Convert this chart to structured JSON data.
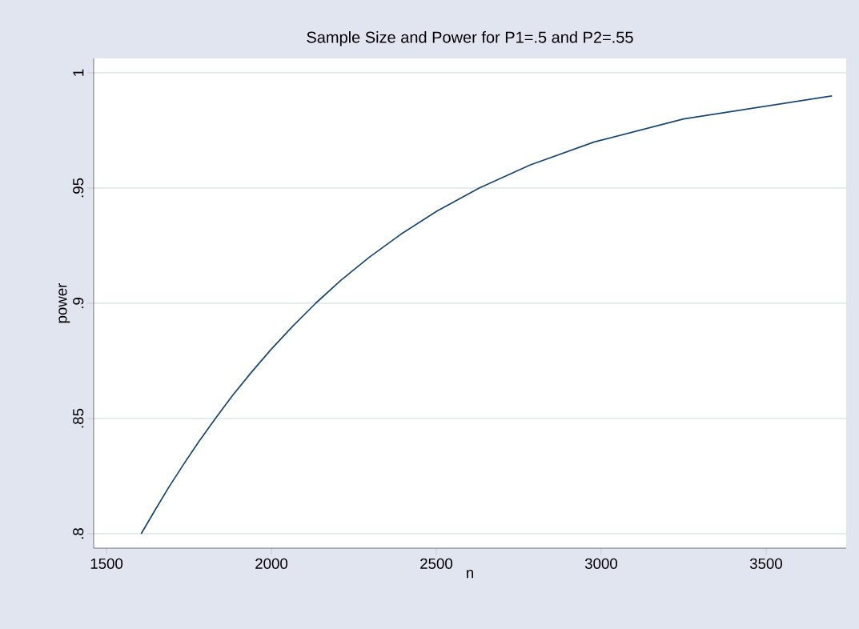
{
  "chart_data": {
    "type": "line",
    "title": "Sample Size and Power for P1=.5 and P2=.55",
    "xlabel": "n",
    "ylabel": "power",
    "series": [
      {
        "color": "#1a476f",
        "x": [
          1605,
          1646,
          1688,
          1733,
          1780,
          1830,
          1882,
          1939,
          1999,
          2064,
          2134,
          2211,
          2297,
          2393,
          2502,
          2630,
          2784,
          2979,
          3250,
          3700
        ],
        "values": [
          0.8,
          0.81,
          0.82,
          0.83,
          0.84,
          0.85,
          0.86,
          0.87,
          0.88,
          0.89,
          0.9,
          0.91,
          0.92,
          0.93,
          0.94,
          0.95,
          0.96,
          0.97,
          0.98,
          0.99
        ]
      }
    ],
    "xlim": [
      1461,
      3743
    ],
    "ylim": [
      0.79375,
      1.00625
    ],
    "xticks": [
      1500,
      2000,
      2500,
      3000,
      3500
    ],
    "yticks": [
      {
        "value": 0.8,
        "label": ".8"
      },
      {
        "value": 0.85,
        "label": ".85"
      },
      {
        "value": 0.9,
        "label": ".9"
      },
      {
        "value": 0.95,
        "label": ".95"
      },
      1
    ],
    "grid": "y"
  }
}
